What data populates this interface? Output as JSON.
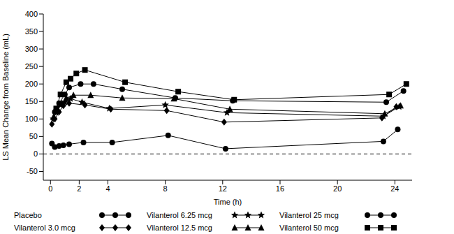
{
  "chart_data": {
    "type": "line",
    "x_label": "Time (h)",
    "y_label": "LS Mean Change from Baseline (mL)",
    "xlim": [
      -0.5,
      25.2
    ],
    "xticks": [
      0,
      2,
      4,
      8,
      12,
      16,
      20,
      24
    ],
    "ylim": [
      -75,
      400
    ],
    "yticks": [
      -50,
      0,
      50,
      100,
      150,
      200,
      250,
      300,
      350,
      400
    ],
    "grid": false,
    "legend": "bottom",
    "hline": 0,
    "series": [
      {
        "name": "Placebo",
        "color": "#000000",
        "marker": "circle",
        "x": [
          0.1,
          0.3,
          0.6,
          0.9,
          1.3,
          2.3,
          4.3,
          8.2,
          12.2,
          23.2,
          24.2
        ],
        "values": [
          30,
          20,
          23,
          25,
          28,
          33,
          33,
          53,
          15,
          36,
          70
        ]
      },
      {
        "name": "Vilanterol 3.0 mcg",
        "color": "#000000",
        "marker": "diamond",
        "x": [
          0.1,
          0.3,
          0.6,
          0.9,
          1.3,
          2.4,
          4.2,
          8.1,
          12.1,
          23.1,
          24.1
        ],
        "values": [
          85,
          100,
          120,
          138,
          145,
          140,
          128,
          124,
          91,
          103,
          135
        ]
      },
      {
        "name": "Vilanterol 6.25 mcg",
        "color": "#000000",
        "marker": "star",
        "x": [
          0.2,
          0.4,
          0.7,
          1.0,
          1.4,
          2.2,
          4.1,
          8.0,
          12.3,
          23.2,
          24.3
        ],
        "values": [
          100,
          118,
          140,
          148,
          158,
          148,
          130,
          140,
          118,
          108,
          135
        ]
      },
      {
        "name": "Vilanterol 12.5 mcg",
        "color": "#000000",
        "marker": "triangle",
        "x": [
          0.2,
          0.5,
          0.8,
          1.1,
          1.6,
          2.8,
          5.0,
          8.6,
          12.5,
          23.3,
          24.4
        ],
        "values": [
          105,
          125,
          145,
          160,
          168,
          168,
          160,
          158,
          128,
          115,
          138
        ]
      },
      {
        "name": "Vilanterol 25 mcg",
        "color": "#000000",
        "marker": "circle",
        "x": [
          0.3,
          0.6,
          1.0,
          1.3,
          2.1,
          3.0,
          5.0,
          8.7,
          12.7,
          23.4,
          24.6
        ],
        "values": [
          120,
          145,
          170,
          190,
          200,
          200,
          185,
          160,
          152,
          148,
          180
        ]
      },
      {
        "name": "Vilanterol 50 mcg",
        "color": "#000000",
        "marker": "square",
        "x": [
          0.4,
          0.7,
          1.1,
          1.4,
          1.8,
          2.4,
          5.2,
          8.9,
          12.8,
          23.6,
          24.8
        ],
        "values": [
          130,
          170,
          205,
          215,
          230,
          240,
          205,
          178,
          155,
          170,
          200
        ]
      }
    ]
  }
}
